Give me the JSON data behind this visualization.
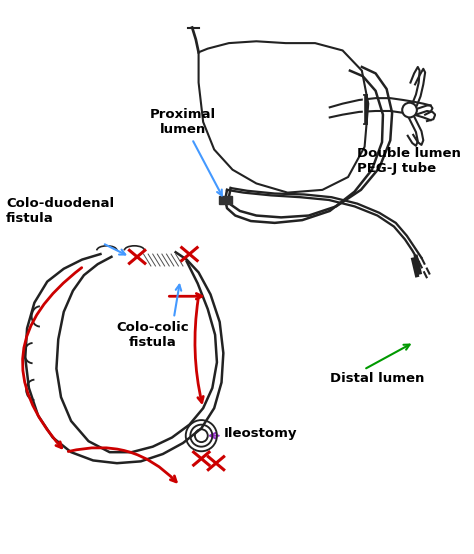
{
  "background_color": "#ffffff",
  "labels": {
    "proximal_lumen": "Proximal\nlumen",
    "double_lumen": "Double lumen\nPEG-J tube",
    "colo_duodenal": "Colo-duodenal\nfistula",
    "colo_colic": "Colo-colic\nfistula",
    "distal_lumen": "Distal lumen",
    "ileostomy": "Ileostomy"
  },
  "arrow_colors": {
    "blue": "#4499ff",
    "red": "#cc0000",
    "green": "#009900",
    "purple": "#9933cc"
  },
  "line_color": "#222222",
  "line_width": 1.5
}
